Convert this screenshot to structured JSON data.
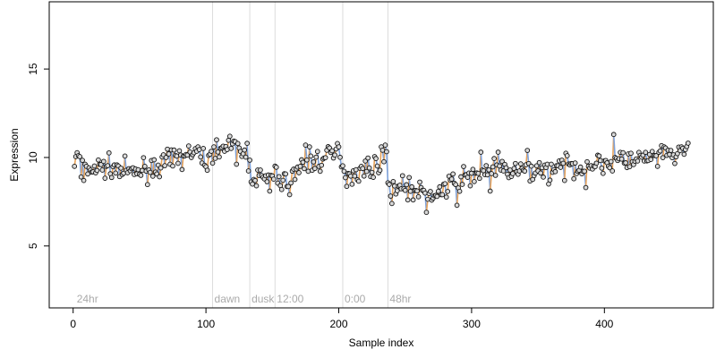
{
  "chart_data": {
    "type": "scatter",
    "xlabel": "Sample index",
    "ylabel": "Expression",
    "xlim": [
      -18,
      482
    ],
    "ylim": [
      1.5,
      18.8
    ],
    "xticks": [
      0,
      100,
      200,
      300,
      400
    ],
    "yticks": [
      5,
      10,
      15
    ],
    "grid": false,
    "colors": {
      "point_fill": "#d9d9d9",
      "point_stroke": "#111111",
      "rise_segment": "#e6a35c",
      "fall_segment": "#7fa3dc",
      "divider": "#dcdcdc",
      "phase_label": "#aaaaaa",
      "axis": "#000000"
    },
    "phases": [
      {
        "label": "24hr",
        "x": 0,
        "divider": false
      },
      {
        "label": "dawn",
        "x": 105,
        "divider": true
      },
      {
        "label": "dusk",
        "x": 133,
        "divider": true
      },
      {
        "label": "12:00",
        "x": 152,
        "divider": true
      },
      {
        "label": "0:00",
        "x": 203,
        "divider": true
      },
      {
        "label": "48hr",
        "x": 237,
        "divider": true
      }
    ],
    "anchors": [
      [
        1,
        9.8
      ],
      [
        5,
        10.1
      ],
      [
        9,
        9.2
      ],
      [
        12,
        9.3
      ],
      [
        17,
        9.4
      ],
      [
        25,
        9.5
      ],
      [
        35,
        9.3
      ],
      [
        45,
        9.1
      ],
      [
        52,
        9.3
      ],
      [
        60,
        9.4
      ],
      [
        70,
        9.7
      ],
      [
        80,
        10.0
      ],
      [
        90,
        10.3
      ],
      [
        100,
        9.9
      ],
      [
        105,
        9.8
      ],
      [
        106,
        10.6
      ],
      [
        112,
        10.5
      ],
      [
        120,
        10.5
      ],
      [
        128,
        10.2
      ],
      [
        133,
        9.6
      ],
      [
        134,
        9.0
      ],
      [
        140,
        8.9
      ],
      [
        146,
        8.7
      ],
      [
        150,
        8.8
      ],
      [
        152,
        9.1
      ],
      [
        156,
        8.7
      ],
      [
        160,
        8.6
      ],
      [
        165,
        9.0
      ],
      [
        172,
        9.5
      ],
      [
        178,
        9.7
      ],
      [
        185,
        9.8
      ],
      [
        192,
        10.1
      ],
      [
        198,
        10.2
      ],
      [
        203,
        10.0
      ],
      [
        204,
        9.0
      ],
      [
        210,
        9.1
      ],
      [
        218,
        9.3
      ],
      [
        225,
        9.4
      ],
      [
        232,
        9.9
      ],
      [
        236,
        10.2
      ],
      [
        237,
        8.6
      ],
      [
        242,
        8.3
      ],
      [
        250,
        8.4
      ],
      [
        258,
        8.1
      ],
      [
        265,
        7.8
      ],
      [
        272,
        8.0
      ],
      [
        280,
        8.2
      ],
      [
        288,
        8.6
      ],
      [
        296,
        8.9
      ],
      [
        304,
        9.1
      ],
      [
        312,
        9.3
      ],
      [
        320,
        9.3
      ],
      [
        330,
        9.2
      ],
      [
        340,
        9.2
      ],
      [
        350,
        9.3
      ],
      [
        360,
        9.4
      ],
      [
        370,
        9.4
      ],
      [
        380,
        9.5
      ],
      [
        390,
        9.6
      ],
      [
        400,
        9.7
      ],
      [
        410,
        9.8
      ],
      [
        420,
        9.8
      ],
      [
        430,
        9.9
      ],
      [
        440,
        10.0
      ],
      [
        450,
        10.1
      ],
      [
        460,
        10.3
      ],
      [
        465,
        10.4
      ]
    ],
    "outliers": [
      [
        6,
        8.9
      ],
      [
        8,
        8.7
      ],
      [
        108,
        11.0
      ],
      [
        122,
        10.9
      ],
      [
        131,
        10.8
      ],
      [
        148,
        8.1
      ],
      [
        163,
        7.9
      ],
      [
        175,
        10.7
      ],
      [
        178,
        10.6
      ],
      [
        200,
        10.6
      ],
      [
        235,
        10.7
      ],
      [
        240,
        7.4
      ],
      [
        256,
        7.6
      ],
      [
        262,
        8.3
      ],
      [
        266,
        6.9
      ],
      [
        271,
        7.7
      ],
      [
        278,
        7.9
      ],
      [
        289,
        7.3
      ],
      [
        299,
        8.4
      ],
      [
        307,
        10.3
      ],
      [
        314,
        8.1
      ],
      [
        320,
        10.3
      ],
      [
        342,
        10.4
      ],
      [
        358,
        8.5
      ],
      [
        372,
        10.1
      ],
      [
        386,
        8.3
      ],
      [
        407,
        11.3
      ],
      [
        418,
        10.2
      ],
      [
        445,
        10.6
      ],
      [
        458,
        10.6
      ]
    ],
    "n_points": 463,
    "noise_sd": 0.3,
    "series": [
      {
        "x": [],
        "y": []
      }
    ]
  }
}
